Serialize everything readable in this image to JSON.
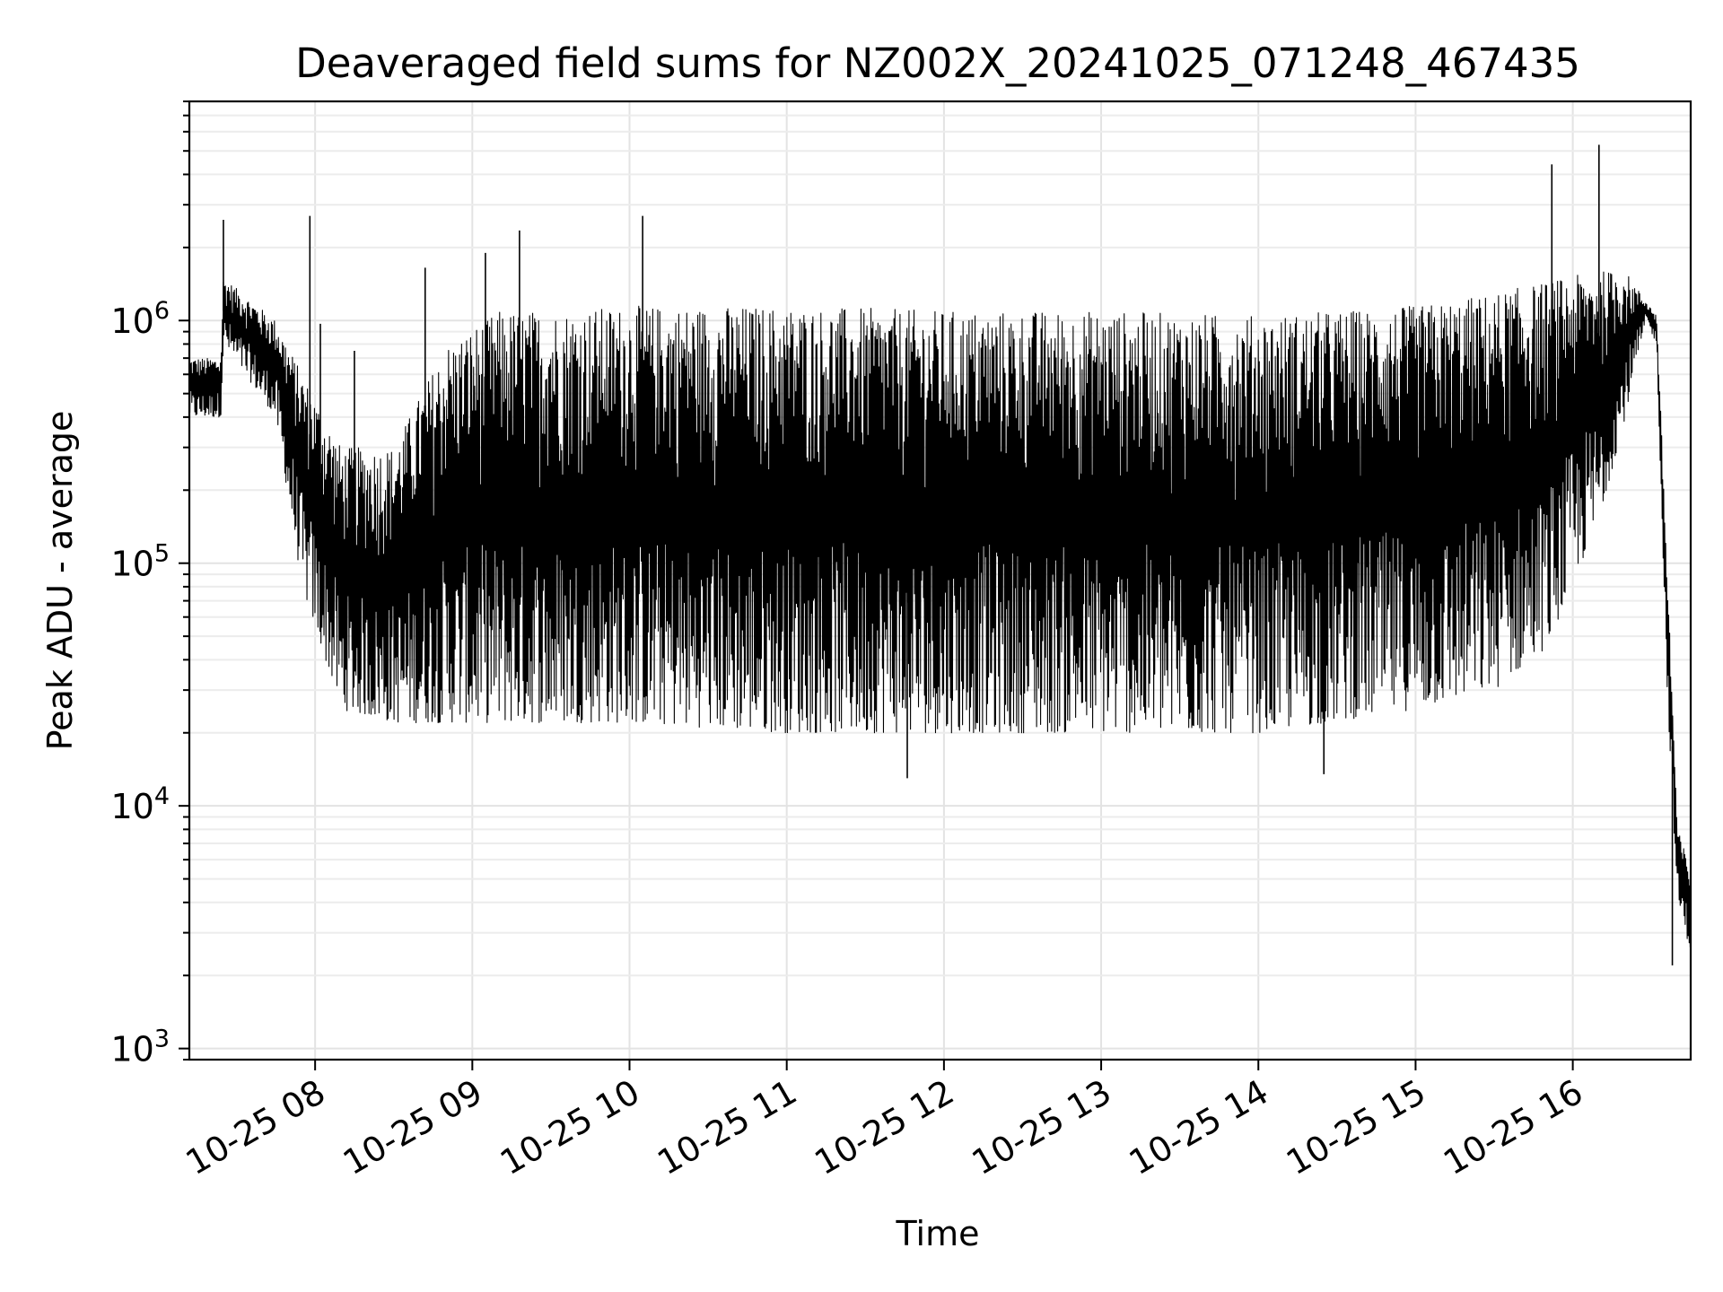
{
  "chart_data": {
    "type": "line",
    "title": "Deaveraged field sums for NZ002X_20241025_071248_467435",
    "xlabel": "Time",
    "ylabel": "Peak ADU - average",
    "yscale": "log",
    "ylim": [
      900,
      8000000
    ],
    "xlim": [
      "2024-10-25 07:12",
      "2024-10-25 16:45"
    ],
    "grid": true,
    "x_tick_labels": [
      "10-25 08",
      "10-25 09",
      "10-25 10",
      "10-25 11",
      "10-25 12",
      "10-25 13",
      "10-25 14",
      "10-25 15",
      "10-25 16"
    ],
    "y_tick_labels": [
      {
        "base": "10",
        "exp": "3"
      },
      {
        "base": "10",
        "exp": "4"
      },
      {
        "base": "10",
        "exp": "5"
      },
      {
        "base": "10",
        "exp": "6"
      }
    ],
    "line_color": "#000000",
    "series": [
      {
        "envelope": {
          "time": [
            "2024-10-25 07:12",
            "2024-10-25 07:24",
            "2024-10-25 07:25",
            "2024-10-25 07:45",
            "2024-10-25 07:55",
            "2024-10-25 08:10",
            "2024-10-25 08:30",
            "2024-10-25 08:50",
            "2024-10-25 09:10",
            "2024-10-25 09:30",
            "2024-10-25 10:00",
            "2024-10-25 11:00",
            "2024-10-25 12:00",
            "2024-10-25 13:00",
            "2024-10-25 14:00",
            "2024-10-25 15:00",
            "2024-10-25 15:30",
            "2024-10-25 15:50",
            "2024-10-25 16:10",
            "2024-10-25 16:20",
            "2024-10-25 16:28",
            "2024-10-25 16:32",
            "2024-10-25 16:36",
            "2024-10-25 16:40",
            "2024-10-25 16:45"
          ],
          "upper": [
            700000,
            700000,
            1500000,
            1000000,
            600000,
            300000,
            300000,
            800000,
            1100000,
            1100000,
            1150000,
            1150000,
            1100000,
            1100000,
            1050000,
            1150000,
            1300000,
            1450000,
            1600000,
            1600000,
            1200000,
            1050000,
            100000,
            8000,
            5500
          ],
          "lower": [
            400000,
            400000,
            800000,
            400000,
            80000,
            25000,
            22000,
            22000,
            22000,
            22000,
            22000,
            20000,
            20000,
            20000,
            20000,
            25000,
            30000,
            45000,
            150000,
            400000,
            1000000,
            800000,
            30000,
            4000,
            2500
          ]
        },
        "spikes": [
          {
            "time": "2024-10-25 07:25",
            "value": 2600000
          },
          {
            "time": "2024-10-25 07:58",
            "value": 2700000
          },
          {
            "time": "2024-10-25 08:02",
            "value": 970000
          },
          {
            "time": "2024-10-25 08:15",
            "value": 750000
          },
          {
            "time": "2024-10-25 08:42",
            "value": 1650000
          },
          {
            "time": "2024-10-25 09:05",
            "value": 1900000
          },
          {
            "time": "2024-10-25 09:18",
            "value": 2350000
          },
          {
            "time": "2024-10-25 10:05",
            "value": 2700000
          },
          {
            "time": "2024-10-25 15:52",
            "value": 4400000
          },
          {
            "time": "2024-10-25 16:10",
            "value": 5300000
          }
        ],
        "dips": [
          {
            "time": "2024-10-25 11:46",
            "value": 13000
          },
          {
            "time": "2024-10-25 14:25",
            "value": 13500
          },
          {
            "time": "2024-10-25 16:38",
            "value": 2200
          }
        ]
      }
    ]
  }
}
